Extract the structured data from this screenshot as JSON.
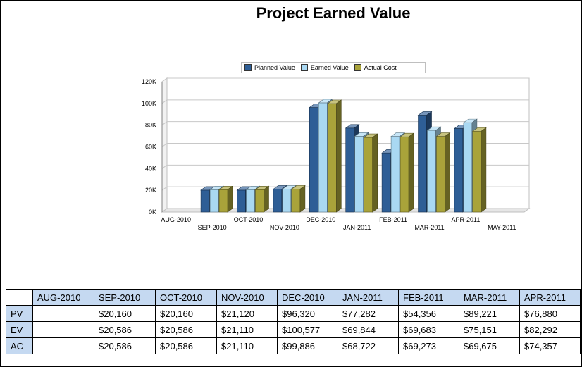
{
  "chart_data": {
    "type": "bar",
    "title": "Project Earned Value",
    "categories": [
      "AUG-2010",
      "SEP-2010",
      "OCT-2010",
      "NOV-2010",
      "DEC-2010",
      "JAN-2011",
      "FEB-2011",
      "MAR-2011",
      "APR-2011",
      "MAY-2011"
    ],
    "series": [
      {
        "name": "Planned Value",
        "color": "#2e5e96",
        "values": [
          null,
          20160,
          20160,
          21120,
          96320,
          77282,
          54356,
          89221,
          76880,
          null
        ]
      },
      {
        "name": "Earned Value",
        "color": "#a9d8f2",
        "values": [
          null,
          20586,
          20586,
          21110,
          100577,
          69844,
          69683,
          75151,
          82292,
          null
        ]
      },
      {
        "name": "Actual Cost",
        "color": "#a9a33a",
        "values": [
          null,
          20586,
          20586,
          21110,
          99886,
          68722,
          69273,
          69675,
          74357,
          null
        ]
      }
    ],
    "yticks": [
      "0K",
      "20K",
      "40K",
      "60K",
      "80K",
      "100K",
      "120K"
    ],
    "ylim": [
      0,
      120000
    ],
    "legend_position": "top",
    "grid": true
  },
  "table": {
    "headers": [
      "AUG-2010",
      "SEP-2010",
      "OCT-2010",
      "NOV-2010",
      "DEC-2010",
      "JAN-2011",
      "FEB-2011",
      "MAR-2011",
      "APR-2011"
    ],
    "rows": [
      {
        "label": "PV",
        "cells": [
          "",
          "$20,160",
          "$20,160",
          "$21,120",
          "$96,320",
          "$77,282",
          "$54,356",
          "$89,221",
          "$76,880"
        ]
      },
      {
        "label": "EV",
        "cells": [
          "",
          "$20,586",
          "$20,586",
          "$21,110",
          "$100,577",
          "$69,844",
          "$69,683",
          "$75,151",
          "$82,292"
        ]
      },
      {
        "label": "AC",
        "cells": [
          "",
          "$20,586",
          "$20,586",
          "$21,110",
          "$99,886",
          "$68,722",
          "$69,273",
          "$69,675",
          "$74,357"
        ]
      }
    ]
  }
}
